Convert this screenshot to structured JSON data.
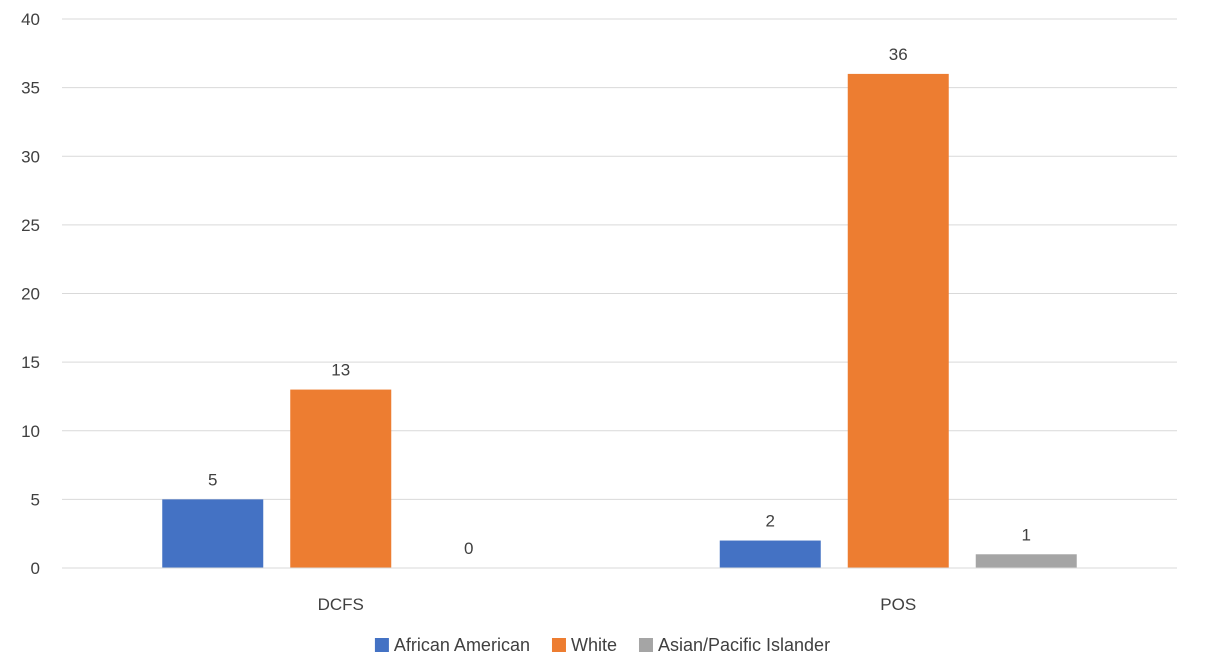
{
  "chart_data": {
    "type": "bar",
    "title": "",
    "xlabel": "",
    "ylabel": "",
    "categories": [
      "DCFS",
      "POS"
    ],
    "series": [
      {
        "name": "African American",
        "values": [
          5,
          2
        ],
        "color": "#4472C4"
      },
      {
        "name": "White",
        "values": [
          13,
          36
        ],
        "color": "#ED7D31"
      },
      {
        "name": "Asian/Pacific Islander",
        "values": [
          0,
          1
        ],
        "color": "#A5A5A5"
      }
    ],
    "ylim": [
      0,
      40
    ],
    "yticks": [
      0,
      5,
      10,
      15,
      20,
      25,
      30,
      35,
      40
    ],
    "grid": true,
    "data_labels": true,
    "legend_position": "bottom"
  }
}
